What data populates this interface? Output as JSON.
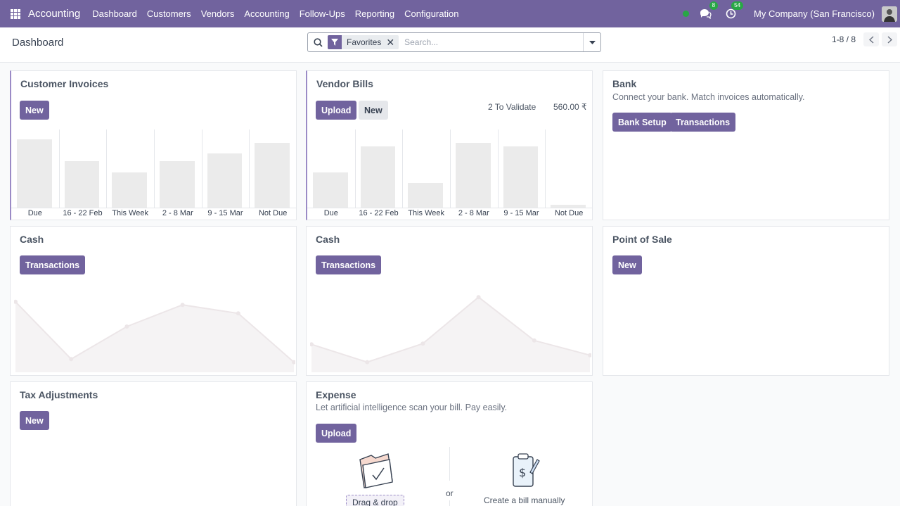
{
  "navbar": {
    "app_name": "Accounting",
    "menu": [
      "Dashboard",
      "Customers",
      "Vendors",
      "Accounting",
      "Follow-Ups",
      "Reporting",
      "Configuration"
    ],
    "messages_count": "8",
    "activities_count": "54",
    "company": "My Company (San Francisco)",
    "accent_color": "#71639e"
  },
  "control": {
    "title": "Dashboard",
    "facet_label": "Favorites",
    "search_placeholder": "Search...",
    "pager": "1-8 / 8"
  },
  "cards": {
    "customer_invoices": {
      "title": "Customer Invoices",
      "new_label": "New",
      "chart_data": {
        "type": "bar",
        "categories": [
          "Due",
          "16 - 22 Feb",
          "This Week",
          "2 - 8 Mar",
          "9 - 15 Mar",
          "Not Due"
        ],
        "values": [
          0.96,
          0.66,
          0.5,
          0.66,
          0.76,
          0.91
        ]
      }
    },
    "vendor_bills": {
      "title": "Vendor Bills",
      "upload_label": "Upload",
      "new_label": "New",
      "to_validate": "2 To Validate",
      "amount": "560.00 ₹",
      "chart_data": {
        "type": "bar",
        "categories": [
          "Due",
          "16 - 22 Feb",
          "This Week",
          "2 - 8 Mar",
          "9 - 15 Mar",
          "Not Due"
        ],
        "values": [
          0.5,
          0.86,
          0.35,
          0.91,
          0.86,
          0.05
        ]
      }
    },
    "bank": {
      "title": "Bank",
      "subtitle": "Connect your bank. Match invoices automatically.",
      "setup_label": "Bank Setup",
      "transactions_label": "Transactions"
    },
    "cash1": {
      "title": "Cash",
      "transactions_label": "Transactions",
      "chart_data": {
        "type": "area",
        "values": [
          0.82,
          0.08,
          0.5,
          0.78,
          0.67,
          0.04
        ]
      }
    },
    "cash2": {
      "title": "Cash",
      "transactions_label": "Transactions",
      "chart_data": {
        "type": "area",
        "values": [
          0.27,
          0.04,
          0.28,
          0.88,
          0.32,
          0.13
        ]
      }
    },
    "pos": {
      "title": "Point of Sale",
      "new_label": "New"
    },
    "tax": {
      "title": "Tax Adjustments",
      "new_label": "New"
    },
    "expense": {
      "title": "Expense",
      "subtitle": "Let artificial intelligence scan your bill. Pay easily.",
      "upload_label": "Upload",
      "drag_label": "Drag & drop",
      "or_label": "or",
      "manual_label": "Create a bill manually"
    }
  }
}
